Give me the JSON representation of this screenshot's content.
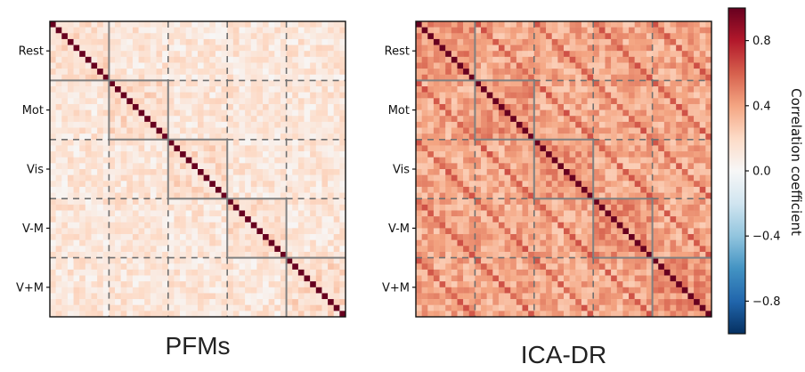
{
  "chart_data": [
    {
      "type": "heatmap",
      "title": "PFMs",
      "row_labels": [
        "Rest",
        "Mot",
        "Vis",
        "V-M",
        "V+M"
      ],
      "block_size": 10,
      "n": 50,
      "diagonal_value": 1.0,
      "within_block_mean": 0.18,
      "between_block_mean": 0.12,
      "solid_block_boundaries": "diagonal block outlines",
      "dashed_block_boundaries": "off-diagonal block grid"
    },
    {
      "type": "heatmap",
      "title": "ICA-DR",
      "row_labels": [
        "Rest",
        "Mot",
        "Vis",
        "V-M",
        "V+M"
      ],
      "block_size": 10,
      "n": 50,
      "diagonal_value": 1.0,
      "within_block_mean": 0.45,
      "between_block_mean": 0.38,
      "off_diagonal_stripe_value": 0.6,
      "solid_block_boundaries": "diagonal block outlines",
      "dashed_block_boundaries": "off-diagonal block grid"
    }
  ],
  "colorbar": {
    "label": "Correlation coefficient",
    "range": [
      -1.0,
      1.0
    ],
    "ticks": [
      "0.8",
      "0.4",
      "0.0",
      "−0.4",
      "−0.8"
    ],
    "tick_values": [
      0.8,
      0.4,
      0.0,
      -0.4,
      -0.8
    ],
    "colormap": "RdBu_r",
    "colors": [
      "#053061",
      "#2166ac",
      "#4393c3",
      "#92c5de",
      "#d1e5f0",
      "#f7f7f7",
      "#fddbc7",
      "#f4a582",
      "#d6604d",
      "#b2182b",
      "#67001f"
    ]
  },
  "styles": {
    "solid_line_color": "#808080",
    "dashed_line_color": "#707070"
  }
}
